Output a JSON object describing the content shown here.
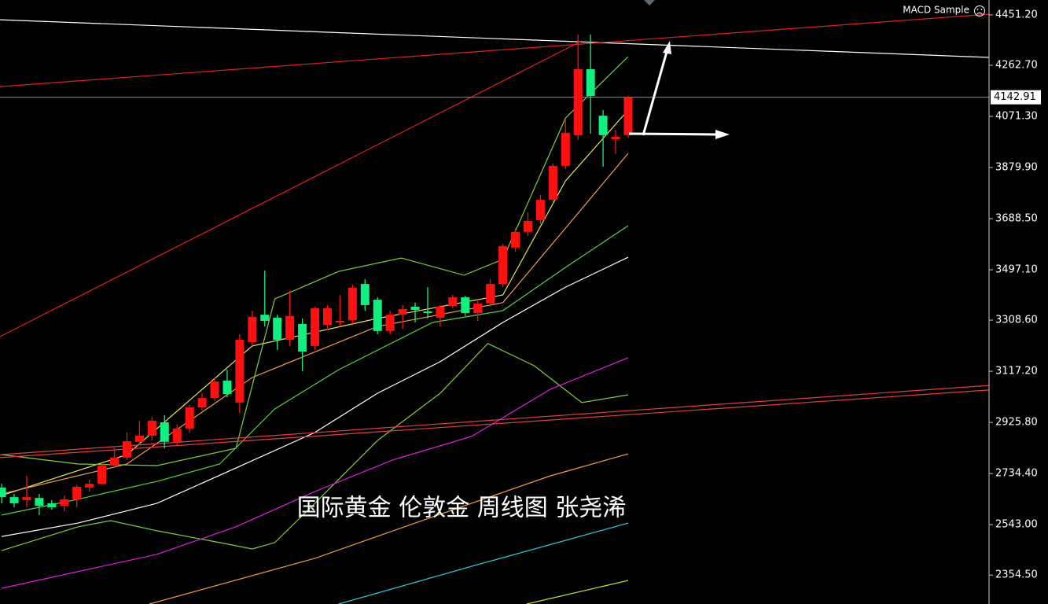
{
  "chart_data": {
    "type": "candlestick",
    "title": "MACD Sample",
    "annotation": "国际黄金 伦敦金 周线图 张尧浠",
    "up_color": "#ff1010",
    "down_color": "#10f080",
    "ohlc": [
      [
        2682,
        2696,
        2623,
        2646
      ],
      [
        2646,
        2658,
        2608,
        2623
      ],
      [
        2635,
        2726,
        2608,
        2646
      ],
      [
        2643,
        2658,
        2579,
        2614
      ],
      [
        2623,
        2635,
        2599,
        2608
      ],
      [
        2614,
        2652,
        2593,
        2638
      ],
      [
        2638,
        2691,
        2608,
        2685
      ],
      [
        2682,
        2711,
        2667,
        2696
      ],
      [
        2696,
        2770,
        2691,
        2764
      ],
      [
        2764,
        2829,
        2755,
        2794
      ],
      [
        2794,
        2888,
        2785,
        2855
      ],
      [
        2853,
        2932,
        2844,
        2876
      ],
      [
        2876,
        2947,
        2858,
        2932
      ],
      [
        2926,
        2953,
        2829,
        2853
      ],
      [
        2853,
        2917,
        2841,
        2903
      ],
      [
        2903,
        2991,
        2888,
        2982
      ],
      [
        2982,
        3035,
        2970,
        3017
      ],
      [
        3017,
        3094,
        3006,
        3079
      ],
      [
        3082,
        3123,
        3020,
        3032
      ],
      [
        3000,
        3256,
        2961,
        3235
      ],
      [
        3226,
        3344,
        3212,
        3321
      ],
      [
        3329,
        3494,
        3285,
        3306
      ],
      [
        3318,
        3329,
        3197,
        3235
      ],
      [
        3235,
        3418,
        3212,
        3324
      ],
      [
        3294,
        3315,
        3117,
        3191
      ],
      [
        3212,
        3359,
        3197,
        3353
      ],
      [
        3291,
        3365,
        3271,
        3353
      ],
      [
        3300,
        3403,
        3285,
        3306
      ],
      [
        3309,
        3441,
        3294,
        3430
      ],
      [
        3444,
        3462,
        3344,
        3365
      ],
      [
        3385,
        3394,
        3256,
        3268
      ],
      [
        3268,
        3344,
        3256,
        3329
      ],
      [
        3329,
        3365,
        3276,
        3350
      ],
      [
        3359,
        3374,
        3300,
        3347
      ],
      [
        3341,
        3432,
        3315,
        3335
      ],
      [
        3318,
        3365,
        3285,
        3359
      ],
      [
        3362,
        3403,
        3353,
        3394
      ],
      [
        3394,
        3400,
        3324,
        3335
      ],
      [
        3335,
        3388,
        3306,
        3371
      ],
      [
        3371,
        3462,
        3359,
        3444
      ],
      [
        3444,
        3594,
        3432,
        3586
      ],
      [
        3580,
        3653,
        3565,
        3639
      ],
      [
        3639,
        3712,
        3624,
        3680
      ],
      [
        3683,
        3777,
        3668,
        3759
      ],
      [
        3759,
        3895,
        3747,
        3886
      ],
      [
        3886,
        4060,
        3874,
        4010
      ],
      [
        4001,
        4378,
        3983,
        4248
      ],
      [
        4248,
        4378,
        4007,
        4148
      ],
      [
        4074,
        4095,
        3883,
        4001
      ],
      [
        3986,
        4021,
        3930,
        3995
      ],
      [
        4001,
        4148,
        3992,
        4142.91
      ]
    ],
    "lines": [
      {
        "color": "#e8e85a",
        "x": [
          0,
          10,
          20,
          30,
          40,
          45,
          50
        ],
        "values": [
          2652,
          2805,
          3212,
          3315,
          3403,
          3830,
          4095
        ]
      },
      {
        "color": "#f0a050",
        "x": [
          0,
          10,
          20,
          30,
          40,
          45,
          50
        ],
        "values": [
          2658,
          2770,
          3094,
          3285,
          3374,
          3653,
          3933
        ]
      },
      {
        "color": "#7fd13b",
        "x": [
          0,
          6.1,
          12.4,
          18.7,
          21.8,
          26.9,
          31.9,
          36.9,
          40,
          45,
          50
        ],
        "values": [
          2805,
          2770,
          2764,
          2829,
          3388,
          3491,
          3541,
          3477,
          3536,
          4065,
          4295
        ]
      },
      {
        "color": "#7fd13b",
        "x": [
          0,
          6.1,
          8.7,
          12.4,
          17.4,
          20,
          21.8,
          25,
          30,
          35,
          38.8,
          42.5,
          46.3,
          50
        ],
        "values": [
          2446,
          2535,
          2558,
          2520,
          2476,
          2452,
          2476,
          2623,
          2858,
          3035,
          3221,
          3138,
          3000,
          3029
        ]
      },
      {
        "color": "#5fcf3f",
        "x": [
          0,
          6.1,
          12.4,
          17.4,
          21.8,
          26.9,
          34.4,
          40,
          45,
          50
        ],
        "values": [
          2579,
          2638,
          2705,
          2770,
          2976,
          3123,
          3300,
          3344,
          3506,
          3662
        ]
      },
      {
        "color": "#ffffff",
        "x": [
          0,
          6.1,
          12.4,
          18.7,
          25,
          30,
          35,
          40,
          45,
          50
        ],
        "values": [
          2499,
          2549,
          2623,
          2755,
          2888,
          3035,
          3153,
          3300,
          3432,
          3544
        ]
      },
      {
        "color": "#e020e0",
        "x": [
          0,
          12.4,
          18.7,
          25,
          31.2,
          37.5,
          43.8,
          50
        ],
        "values": [
          2305,
          2432,
          2535,
          2667,
          2785,
          2873,
          3050,
          3168
        ]
      },
      {
        "color": "#f0a040",
        "x": [
          11.8,
          25,
          37.5,
          43.8,
          50
        ],
        "values": [
          2246,
          2417,
          2623,
          2726,
          2808
        ]
      },
      {
        "color": "#30d0e0",
        "x": [
          26.9,
          37.5,
          50
        ],
        "values": [
          2246,
          2387,
          2549
        ]
      },
      {
        "color": "#e0e040",
        "x": [
          41.9,
          50
        ],
        "values": [
          2246,
          2334
        ]
      },
      {
        "color": "#ffffff",
        "x": [
          -0.13,
          78.8
        ],
        "values": [
          4433,
          4292
        ]
      },
      {
        "color": "#e02020",
        "x": [
          -0.13,
          46.3
        ],
        "values": [
          3247,
          4354
        ]
      },
      {
        "color": "#e02020",
        "x": [
          -0.13,
          78.8
        ],
        "values": [
          4183,
          4454
        ]
      },
      {
        "color": "#e04040",
        "x": [
          -0.13,
          78.8
        ],
        "values": [
          2805,
          3064
        ]
      },
      {
        "color": "#e04040",
        "x": [
          -0.13,
          78.8
        ],
        "values": [
          2794,
          3047
        ]
      }
    ],
    "xlim": [
      -0.13,
      78.8
    ],
    "ylim": [
      2246,
      4507
    ],
    "yticks": [
      {
        "value": 4451.2,
        "label": "4451.20"
      },
      {
        "value": 4262.7,
        "label": "4262.70"
      },
      {
        "value": 4071.3,
        "label": "4071.30"
      },
      {
        "value": 3879.9,
        "label": "3879.90"
      },
      {
        "value": 3688.5,
        "label": "3688.50"
      },
      {
        "value": 3497.1,
        "label": "3497.10"
      },
      {
        "value": 3308.6,
        "label": "3308.60"
      },
      {
        "value": 3117.2,
        "label": "3117.20"
      },
      {
        "value": 2925.8,
        "label": "2925.80"
      },
      {
        "value": 2734.4,
        "label": "2734.40"
      },
      {
        "value": 2543,
        "label": "2543.00"
      },
      {
        "value": 2354.5,
        "label": "2354.50"
      }
    ],
    "current_price": 4142.91,
    "current_price_color": "#8090a8"
  }
}
